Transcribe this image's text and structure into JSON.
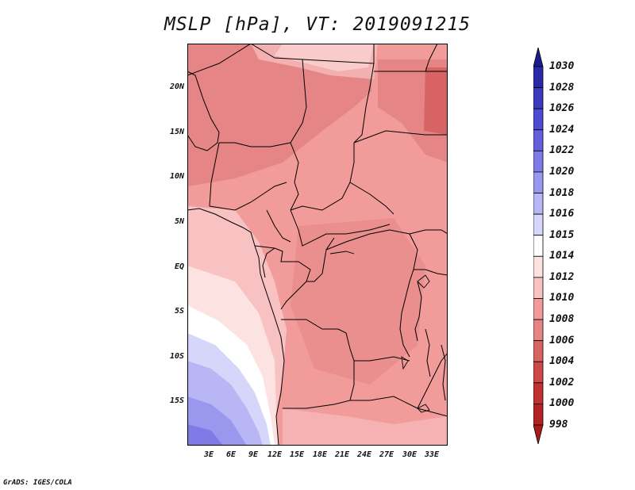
{
  "title": "MSLP [hPa], VT: 2019091215",
  "credit": "GrADS: IGES/COLA",
  "map": {
    "lat_labels": [
      "20N",
      "15N",
      "10N",
      "5N",
      "EQ",
      "5S",
      "10S",
      "15S"
    ],
    "lon_labels": [
      "3E",
      "6E",
      "9E",
      "12E",
      "15E",
      "18E",
      "21E",
      "24E",
      "27E",
      "30E",
      "33E"
    ]
  },
  "colorbar": {
    "levels": [
      "1030",
      "1028",
      "1026",
      "1024",
      "1022",
      "1020",
      "1018",
      "1016",
      "1015",
      "1014",
      "1012",
      "1010",
      "1008",
      "1006",
      "1004",
      "1002",
      "1000",
      "998"
    ],
    "colors": [
      "#1c1a8c",
      "#2a28a6",
      "#3b39bd",
      "#4d4bd1",
      "#6460dd",
      "#7e7ae6",
      "#9a97ee",
      "#b8b6f5",
      "#d6d6fb",
      "#ffffff",
      "#fde2e2",
      "#f8c2c2",
      "#f29b9b",
      "#e58585",
      "#d86363",
      "#cf4848",
      "#c03232",
      "#b32323",
      "#a81b1b"
    ]
  }
}
